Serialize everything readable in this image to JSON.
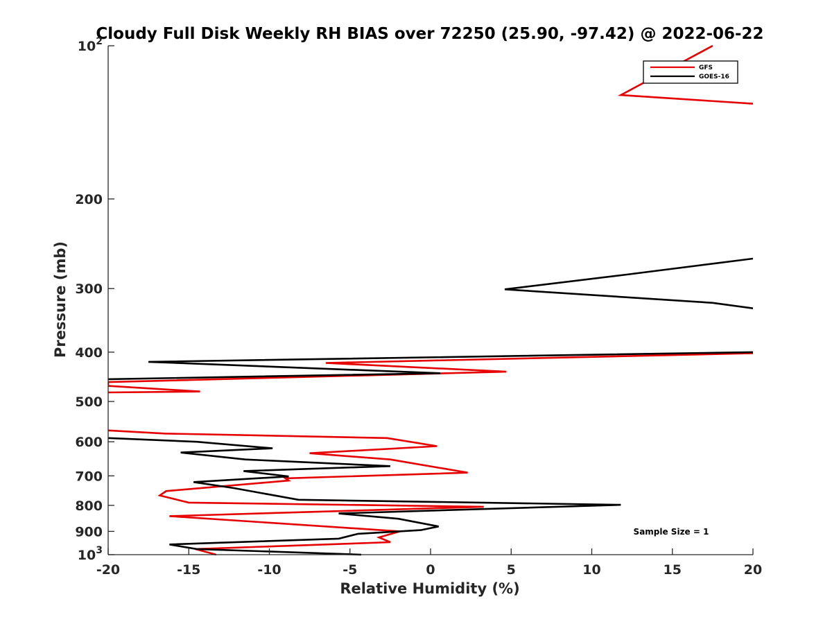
{
  "chart_data": {
    "type": "line",
    "title": "Cloudy Full Disk Weekly RH BIAS over 72250 (25.90, -97.42) @ 2022-06-22",
    "xlabel": "Relative Humidity (%)",
    "ylabel": "Pressure (mb)",
    "xlim": [
      -20,
      20
    ],
    "ylim": [
      100,
      1000
    ],
    "y_scale": "log",
    "y_reversed": true,
    "grid": false,
    "legend_position": "top-right",
    "x_ticks": [
      "-20",
      "-15",
      "-10",
      "-5",
      "0",
      "5",
      "10",
      "15",
      "20"
    ],
    "y_ticks": [
      {
        "value": 100,
        "base": "10",
        "exp": "2"
      },
      {
        "value": 200,
        "label": "200"
      },
      {
        "value": 300,
        "label": "300"
      },
      {
        "value": 400,
        "label": "400"
      },
      {
        "value": 500,
        "label": "500"
      },
      {
        "value": 600,
        "label": "600"
      },
      {
        "value": 700,
        "label": "700"
      },
      {
        "value": 800,
        "label": "800"
      },
      {
        "value": 900,
        "label": "900"
      },
      {
        "value": 1000,
        "base": "10",
        "exp": "3"
      }
    ],
    "series": [
      {
        "name": "GFS",
        "color": "#e60000",
        "points": [
          [
            17.5,
            100
          ],
          [
            11.8,
            125
          ],
          [
            20,
            130
          ],
          [
            null,
            null
          ],
          [
            20,
            402
          ],
          [
            -6.5,
            420
          ],
          [
            4.7,
            437
          ],
          [
            -20,
            458
          ],
          [
            -20,
            466
          ],
          [
            -14.3,
            478
          ],
          [
            -20,
            480
          ],
          [
            null,
            null
          ],
          [
            -20,
            570
          ],
          [
            -16.5,
            578
          ],
          [
            -2.7,
            590
          ],
          [
            0.4,
            612
          ],
          [
            -7.5,
            632
          ],
          [
            -2.5,
            650
          ],
          [
            2.3,
            690
          ],
          [
            -9,
            708
          ],
          [
            -8.8,
            715
          ],
          [
            -16.4,
            750
          ],
          [
            -16.8,
            765
          ],
          [
            -15,
            790
          ],
          [
            3.3,
            805
          ],
          [
            -16.2,
            840
          ],
          [
            -1.9,
            900
          ],
          [
            -3.2,
            925
          ],
          [
            -2.5,
            945
          ],
          [
            -14.6,
            975
          ],
          [
            -13.3,
            1000
          ]
        ]
      },
      {
        "name": "GOES-16",
        "color": "#000000",
        "points": [
          [
            null,
            null
          ],
          [
            20,
            262
          ],
          [
            12,
            282
          ],
          [
            4.6,
            301
          ],
          [
            17.5,
            320
          ],
          [
            20,
            328
          ],
          [
            null,
            null
          ],
          [
            20,
            400
          ],
          [
            -17.5,
            418
          ],
          [
            0.6,
            440
          ],
          [
            -20,
            452
          ],
          [
            null,
            null
          ],
          [
            -20,
            590
          ],
          [
            -14.5,
            600
          ],
          [
            -9.8,
            618
          ],
          [
            -15.5,
            630
          ],
          [
            -11.5,
            650
          ],
          [
            -2.5,
            670
          ],
          [
            -11.6,
            685
          ],
          [
            -8.8,
            702
          ],
          [
            -14.7,
            720
          ],
          [
            -12.2,
            740
          ],
          [
            -8.2,
            780
          ],
          [
            11.8,
            798
          ],
          [
            -5.7,
            830
          ],
          [
            -2,
            850
          ],
          [
            0.5,
            880
          ],
          [
            -0.6,
            895
          ],
          [
            -4.5,
            910
          ],
          [
            -5.7,
            930
          ],
          [
            -16.2,
            955
          ],
          [
            -14.5,
            975
          ],
          [
            -4.3,
            1000
          ]
        ]
      }
    ],
    "annotation": "Sample Size = 1"
  }
}
